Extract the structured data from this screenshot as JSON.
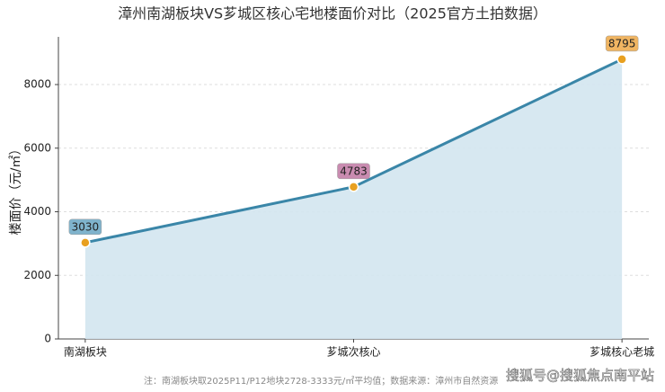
{
  "chart_data": {
    "type": "line",
    "title": "漳州南湖板块VS芗城区核心宅地楼面价对比（2025官方土拍数据）",
    "y_label": "楼面价（元/㎡）",
    "categories": [
      "南湖板块",
      "芗城次核心",
      "芗城核心老城"
    ],
    "series": [
      {
        "name": "楼面价",
        "color": "#3a86a8",
        "fill": "#d3e5ef",
        "point_color": "#e8a020",
        "values": [
          3030,
          4783,
          8795
        ],
        "label_colors": [
          "#7fb3cc",
          "#c98bb0",
          "#f0b562"
        ]
      }
    ],
    "ylim": [
      0,
      9500
    ],
    "yticks": [
      0,
      2000,
      4000,
      6000,
      8000
    ],
    "grid": true,
    "footnote": "注：南湖板块取2025P11/P12地块2728-3333元/㎡平均值；数据来源：漳州市自然资源",
    "watermark": "搜狐号@搜狐焦点南平站"
  }
}
